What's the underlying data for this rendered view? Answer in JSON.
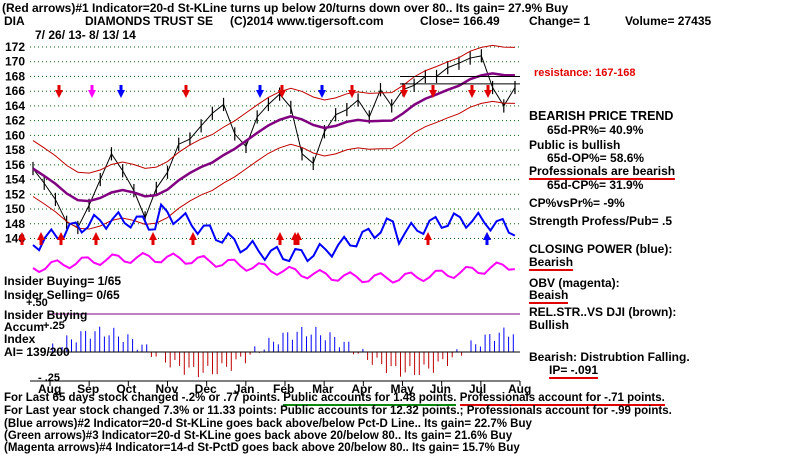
{
  "header": {
    "line1": "(Red arrows)#1 Indicator=20-d St-KLine turns up below 20/turns down over 80.. Its gain= 27.9% Buy",
    "ticker": "DIA",
    "name": "DIAMONDS TRUST SE",
    "copyright": "(C)2014 www.tigersoft.com",
    "close": "Close= 166.49",
    "change": "Change= 1",
    "volume": "Volume= 27435",
    "daterange": "7/ 26/ 13- 8/ 13/ 14"
  },
  "annotations": {
    "resistance": "resistance: 167-168",
    "trend": "BEARISH PRICE TREND",
    "pr": "65d-PR%= 40.9%",
    "public1": "Public is bullish",
    "public2": "65d-OP%= 58.6%",
    "pros1": "Professionals are bearish",
    "pros2": "65d-CP%= 31.9%",
    "cpvspr": "CP%vsPr%= -9%",
    "strength": "Strength Profess/Pub= .5",
    "closing_power": "CLOSING POWER (blue):",
    "cp_state": "Bearish",
    "obv": "OBV (magenta):",
    "obv_state": "Beaish",
    "relstr": "REL.STR..VS DJI (brown):",
    "relstr_state": "Bullish",
    "insider_buying": "Insider Buying= 1/65",
    "insider_selling": "Insider Selling= 0/65",
    "insider_buying2": "Insider Buying",
    "accum": "Accum",
    "index": "Index",
    "ai": "AI= 139/200",
    "plus50": "+.50",
    "plus25": "+.25",
    "minus25": "- .25",
    "distribution": "Bearish: Distrubtion Falling.",
    "ip": "IP= -.091"
  },
  "footer": {
    "l1a": "For Last 65 days stock changed -.2% or  .77 points.",
    "l1b": "Public accounts for  1.48 points.",
    "l1c": "Professionals account for -.71 points.",
    "l2": "For Last year stock changed  7.3% or  11.33 points:  Public accounts for  12.32 points.;  Professionals account for -.99 points.",
    "l3": "(Blue arrows)#2 Indicator=20-d St-KLine goes back above/below Pct-D Line.. Its gain= 22.7% Buy",
    "l4": "(Green arrows)#3 Indicator=20-d St-KLine goes back above 20/below 80.. Its gain= 21.6% Buy",
    "l5": "(Magenta arrows)#4 Indicator=14-d St-PctD goes back above 20/below 80.. Its gain= 15.7% Buy"
  },
  "chart_data": {
    "type": "line",
    "title": "DIAMONDS TRUST SE",
    "yticks": [
      146,
      148,
      150,
      152,
      154,
      156,
      158,
      160,
      162,
      164,
      166,
      168,
      170,
      172
    ],
    "xticks": [
      "Aug",
      "Sep",
      "Oct",
      "Nov",
      "Dec",
      "Jan",
      "Feb",
      "Mar",
      "Apr",
      "May",
      "Jun",
      "Jul",
      "Aug"
    ],
    "price_close": [
      155.5,
      153.5,
      151.3,
      148.2,
      147.5,
      150.5,
      154,
      157.5,
      155.2,
      152.5,
      148.8,
      152.8,
      155,
      158.8,
      159.5,
      161.3,
      163,
      164.2,
      160.2,
      158.5,
      162.5,
      164.2,
      165.6,
      163.8,
      157.5,
      156.2,
      160.5,
      162.8,
      163.5,
      164.8,
      162.5,
      166.2,
      164,
      166.2,
      166.8,
      168,
      168,
      169.2,
      169.8,
      170.5,
      170.8,
      166.5,
      164,
      166.5
    ],
    "resistance_range": [
      167,
      168
    ],
    "series": [
      {
        "name": "CLOSING POWER (blue)",
        "color": "#0000ff"
      },
      {
        "name": "OBV (magenta)",
        "color": "#ff00ff"
      },
      {
        "name": "REL.STR..VS DJI (brown)",
        "color": "#8b2500"
      }
    ],
    "arrows": {
      "red_up": [
        22,
        41,
        61,
        96,
        153,
        193,
        280,
        298,
        295,
        428,
        487
      ],
      "red_down": [
        59,
        186,
        282,
        352,
        404,
        433,
        472,
        488
      ],
      "blue_up": [
        487
      ],
      "blue_down": [
        121,
        260,
        322
      ],
      "magenta_down": [
        92
      ]
    },
    "colors": {
      "price": "#000000",
      "ma": "#800080",
      "band": "#c00000",
      "grid": "#006400"
    }
  }
}
